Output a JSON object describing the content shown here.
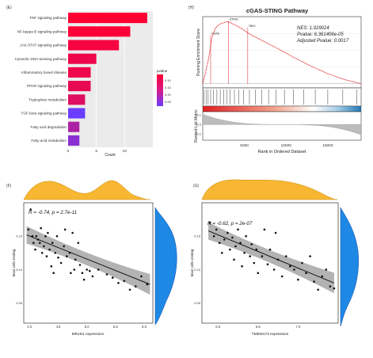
{
  "panels": {
    "e": {
      "label": "(E)"
    },
    "f": {
      "label": "(F)"
    },
    "g": {
      "label": "(G)"
    },
    "h": {
      "label": "(H)"
    }
  },
  "chart_data": [
    {
      "type": "bar",
      "panel": "E",
      "orientation": "horizontal",
      "categories": [
        "TNF signaling pathway",
        "NF-kappa B signaling pathway",
        "JAK-STAT signaling pathway",
        "Cytosolic DNA-sensing pathway",
        "Inflammatory bowel disease",
        "PPAR signaling pathway",
        "Tryptophan metabolism",
        "TGF-beta signaling pathway",
        "Fatty acid degradation",
        "Fatty acid metabolism"
      ],
      "values": [
        14,
        11,
        9,
        5,
        4,
        4,
        3,
        3,
        2,
        2
      ],
      "pvalues": [
        0.005,
        0.006,
        0.008,
        0.01,
        0.01,
        0.012,
        0.015,
        0.05,
        0.03,
        0.04
      ],
      "xlabel": "Count",
      "xticks": [
        0,
        5,
        10
      ],
      "xlim": [
        0,
        15
      ],
      "legend": {
        "title": "pvalue",
        "ticks": [
          "0.10",
          "0.15",
          "0.20",
          "0.05"
        ],
        "colors": [
          "#ff0033",
          "#6a3dff"
        ]
      }
    },
    {
      "type": "line",
      "panel": "H",
      "title": "cGAS-STING Pathway",
      "ylabel_top": "Running Enrichment Score",
      "ylabel_bottom": "Ranked List Metric",
      "xlabel": "Rank in Ordered Dataset",
      "xticks": [
        5000,
        10000,
        15000
      ],
      "xlim": [
        0,
        19000
      ],
      "es_curve": [
        [
          0,
          0
        ],
        [
          300,
          0.12
        ],
        [
          700,
          0.3
        ],
        [
          900,
          0.42
        ],
        [
          1100,
          0.55
        ],
        [
          1500,
          0.66
        ],
        [
          2000,
          0.71
        ],
        [
          2600,
          0.73
        ],
        [
          3000,
          0.74
        ],
        [
          3500,
          0.72
        ],
        [
          4500,
          0.67
        ],
        [
          5500,
          0.6
        ],
        [
          7000,
          0.52
        ],
        [
          9000,
          0.42
        ],
        [
          11000,
          0.31
        ],
        [
          13000,
          0.21
        ],
        [
          15000,
          0.12
        ],
        [
          17000,
          0.05
        ],
        [
          19000,
          0
        ]
      ],
      "ylim": [
        -0.05,
        0.8
      ],
      "gene_labels": [
        {
          "gene": "CGAS",
          "x": 950,
          "y": 0.58
        },
        {
          "gene": "STING",
          "x": 3100,
          "y": 0.75
        },
        {
          "gene": "TBK1",
          "x": 5400,
          "y": 0.67
        }
      ],
      "stats": {
        "nes": "NES: 1.929024",
        "pvalue": "Pvalue: 6.361406e-05",
        "adj": "Adjusted Pvalue: 0.0017"
      },
      "hits": [
        150,
        400,
        650,
        950,
        1300,
        1700,
        2100,
        2500,
        2900,
        3300,
        3800,
        4300,
        4900,
        5600,
        6300,
        7100,
        7900,
        8800,
        9800,
        10900,
        12100,
        13500,
        15000,
        16800,
        18500
      ],
      "ranked_metric_ticks": [
        "0.1",
        "0.0",
        "-0.1"
      ]
    },
    {
      "type": "scatter",
      "panel": "F",
      "xlabel": "MR1D1 expression",
      "ylabel": "Mast cells resting",
      "annotation": "R = -0.74, p = 2.7e-11",
      "xticks": [
        4.0,
        4.5,
        5.0,
        5.5,
        6.0
      ],
      "xlim": [
        3.9,
        6.15
      ],
      "yticks": [
        0.15,
        0.1,
        0.05
      ],
      "ylim": [
        0.02,
        0.2
      ],
      "fit": [
        [
          3.95,
          0.152
        ],
        [
          6.1,
          0.078
        ]
      ],
      "points": [
        [
          3.98,
          0.16
        ],
        [
          4.02,
          0.19
        ],
        [
          4.05,
          0.15
        ],
        [
          4.07,
          0.14
        ],
        [
          4.1,
          0.13
        ],
        [
          4.12,
          0.15
        ],
        [
          4.15,
          0.145
        ],
        [
          4.18,
          0.14
        ],
        [
          4.2,
          0.162
        ],
        [
          4.22,
          0.125
        ],
        [
          4.25,
          0.135
        ],
        [
          4.28,
          0.15
        ],
        [
          4.3,
          0.12
        ],
        [
          4.32,
          0.155
        ],
        [
          4.35,
          0.13
        ],
        [
          4.38,
          0.105
        ],
        [
          4.4,
          0.14
        ],
        [
          4.42,
          0.095
        ],
        [
          4.45,
          0.125
        ],
        [
          4.48,
          0.15
        ],
        [
          4.5,
          0.118
        ],
        [
          4.55,
          0.11
        ],
        [
          4.6,
          0.135
        ],
        [
          4.62,
          0.16
        ],
        [
          4.65,
          0.12
        ],
        [
          4.7,
          0.125
        ],
        [
          4.72,
          0.095
        ],
        [
          4.75,
          0.155
        ],
        [
          4.78,
          0.1
        ],
        [
          4.8,
          0.115
        ],
        [
          4.85,
          0.14
        ],
        [
          4.88,
          0.107
        ],
        [
          4.92,
          0.095
        ],
        [
          4.95,
          0.085
        ],
        [
          5.0,
          0.1
        ],
        [
          5.05,
          0.098
        ],
        [
          5.1,
          0.09
        ],
        [
          5.2,
          0.1
        ],
        [
          5.35,
          0.093
        ],
        [
          5.45,
          0.088
        ],
        [
          5.55,
          0.08
        ],
        [
          5.65,
          0.083
        ],
        [
          5.75,
          0.07
        ],
        [
          5.85,
          0.075
        ],
        [
          5.95,
          0.09
        ],
        [
          6.05,
          0.078
        ]
      ]
    },
    {
      "type": "scatter",
      "panel": "G",
      "xlabel": "TMEM173 expression",
      "ylabel": "Mast cells resting",
      "annotation": "R = -0.62, p = 2e-07",
      "xticks": [
        6.0,
        6.5,
        7.0
      ],
      "xlim": [
        5.8,
        7.5
      ],
      "yticks": [
        0.15,
        0.1,
        0.05
      ],
      "ylim": [
        0.02,
        0.2
      ],
      "fit": [
        [
          5.88,
          0.158
        ],
        [
          7.45,
          0.08
        ]
      ],
      "points": [
        [
          5.9,
          0.17
        ],
        [
          5.95,
          0.15
        ],
        [
          5.98,
          0.16
        ],
        [
          6.02,
          0.14
        ],
        [
          6.05,
          0.125
        ],
        [
          6.08,
          0.145
        ],
        [
          6.12,
          0.155
        ],
        [
          6.15,
          0.13
        ],
        [
          6.18,
          0.148
        ],
        [
          6.2,
          0.115
        ],
        [
          6.22,
          0.135
        ],
        [
          6.25,
          0.16
        ],
        [
          6.28,
          0.14
        ],
        [
          6.3,
          0.105
        ],
        [
          6.33,
          0.125
        ],
        [
          6.35,
          0.15
        ],
        [
          6.4,
          0.12
        ],
        [
          6.42,
          0.138
        ],
        [
          6.45,
          0.11
        ],
        [
          6.48,
          0.13
        ],
        [
          6.5,
          0.095
        ],
        [
          6.55,
          0.12
        ],
        [
          6.58,
          0.16
        ],
        [
          6.62,
          0.108
        ],
        [
          6.65,
          0.13
        ],
        [
          6.7,
          0.1
        ],
        [
          6.72,
          0.155
        ],
        [
          6.75,
          0.115
        ],
        [
          6.8,
          0.09
        ],
        [
          6.85,
          0.12
        ],
        [
          6.9,
          0.105
        ],
        [
          6.95,
          0.1
        ],
        [
          7.0,
          0.085
        ],
        [
          7.05,
          0.11
        ],
        [
          7.1,
          0.095
        ],
        [
          7.15,
          0.12
        ],
        [
          7.2,
          0.082
        ],
        [
          7.25,
          0.07
        ],
        [
          7.3,
          0.09
        ],
        [
          7.35,
          0.1
        ],
        [
          7.4,
          0.075
        ],
        [
          7.45,
          0.072
        ]
      ]
    }
  ]
}
